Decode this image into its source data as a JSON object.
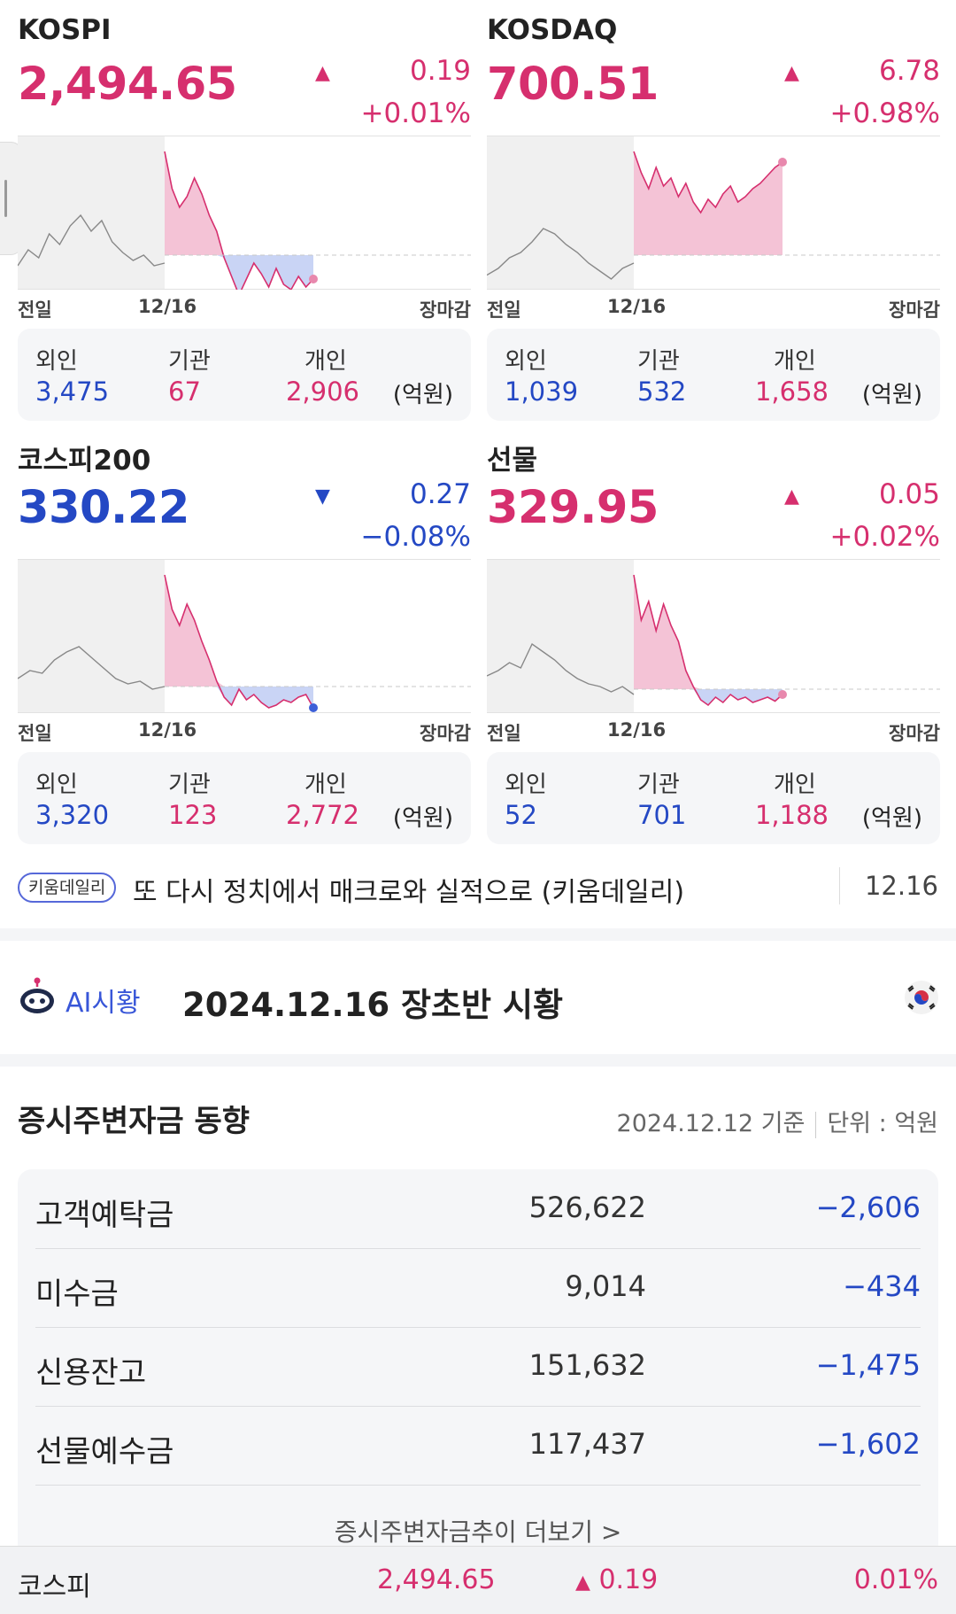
{
  "indices": [
    {
      "name": "KOSPI",
      "price": "2,494.65",
      "direction": "up",
      "arrow": "▲",
      "change": "0.19",
      "percent": "+0.01%",
      "axis": {
        "left": "전일",
        "mid": "12/16",
        "right": "장마감"
      },
      "flows": {
        "foreign_label": "외인",
        "foreign": "3,475",
        "foreign_dir": "down",
        "inst_label": "기관",
        "inst": "67",
        "inst_dir": "up",
        "indiv_label": "개인",
        "indiv": "2,906",
        "indiv_dir": "up",
        "unit": "(억원)"
      }
    },
    {
      "name": "KOSDAQ",
      "price": "700.51",
      "direction": "up",
      "arrow": "▲",
      "change": "6.78",
      "percent": "+0.98%",
      "axis": {
        "left": "전일",
        "mid": "12/16",
        "right": "장마감"
      },
      "flows": {
        "foreign_label": "외인",
        "foreign": "1,039",
        "foreign_dir": "down",
        "inst_label": "기관",
        "inst": "532",
        "inst_dir": "down",
        "indiv_label": "개인",
        "indiv": "1,658",
        "indiv_dir": "up",
        "unit": "(억원)"
      }
    },
    {
      "name": "코스피200",
      "price": "330.22",
      "direction": "down",
      "arrow": "▼",
      "change": "0.27",
      "percent": "−0.08%",
      "axis": {
        "left": "전일",
        "mid": "12/16",
        "right": "장마감"
      },
      "flows": {
        "foreign_label": "외인",
        "foreign": "3,320",
        "foreign_dir": "down",
        "inst_label": "기관",
        "inst": "123",
        "inst_dir": "up",
        "indiv_label": "개인",
        "indiv": "2,772",
        "indiv_dir": "up",
        "unit": "(억원)"
      }
    },
    {
      "name": "선물",
      "price": "329.95",
      "direction": "up",
      "arrow": "▲",
      "change": "0.05",
      "percent": "+0.02%",
      "axis": {
        "left": "전일",
        "mid": "12/16",
        "right": "장마감"
      },
      "flows": {
        "foreign_label": "외인",
        "foreign": "52",
        "foreign_dir": "down",
        "inst_label": "기관",
        "inst": "701",
        "inst_dir": "down",
        "indiv_label": "개인",
        "indiv": "1,188",
        "indiv_dir": "up",
        "unit": "(억원)"
      }
    }
  ],
  "news": {
    "badge": "키움데일리",
    "title": "또 다시 정치에서 매크로와 실적으로 (키움데일리)",
    "date": "12.16"
  },
  "ai": {
    "label": "AI시황",
    "title": "2024.12.16 장초반 시황",
    "flag_icon": "korea-flag-icon"
  },
  "funds": {
    "title": "증시주변자금 동향",
    "as_of": "2024.12.12 기준",
    "unit": "단위 : 억원",
    "rows": [
      {
        "label": "고객예탁금",
        "value": "526,622",
        "change": "−2,606"
      },
      {
        "label": "미수금",
        "value": "9,014",
        "change": "−434"
      },
      {
        "label": "신용잔고",
        "value": "151,632",
        "change": "−1,475"
      },
      {
        "label": "선물예수금",
        "value": "117,437",
        "change": "−1,602"
      }
    ],
    "more": "증시주변자금추이 더보기 >"
  },
  "bottom_bar": {
    "name": "코스피",
    "price": "2,494.65",
    "arrow": "▲",
    "change": "0.19",
    "percent": "0.01%"
  },
  "colors": {
    "up": "#d62f6e",
    "down": "#2448c4",
    "up_fill": "#f4c3d6",
    "prev_bg": "#f0f0f0"
  }
}
